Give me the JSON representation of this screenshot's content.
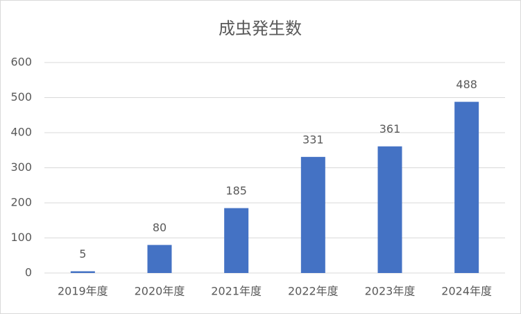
{
  "chart_data": {
    "type": "bar",
    "title": "成虫発生数",
    "categories": [
      "2019年度",
      "2020年度",
      "2021年度",
      "2022年度",
      "2023年度",
      "2024年度"
    ],
    "values": [
      5,
      80,
      185,
      331,
      361,
      488
    ],
    "color": "#4472c4",
    "ylim": [
      0,
      600
    ],
    "yticks": [
      0,
      100,
      200,
      300,
      400,
      500,
      600
    ],
    "grid": true,
    "data_labels": true
  }
}
